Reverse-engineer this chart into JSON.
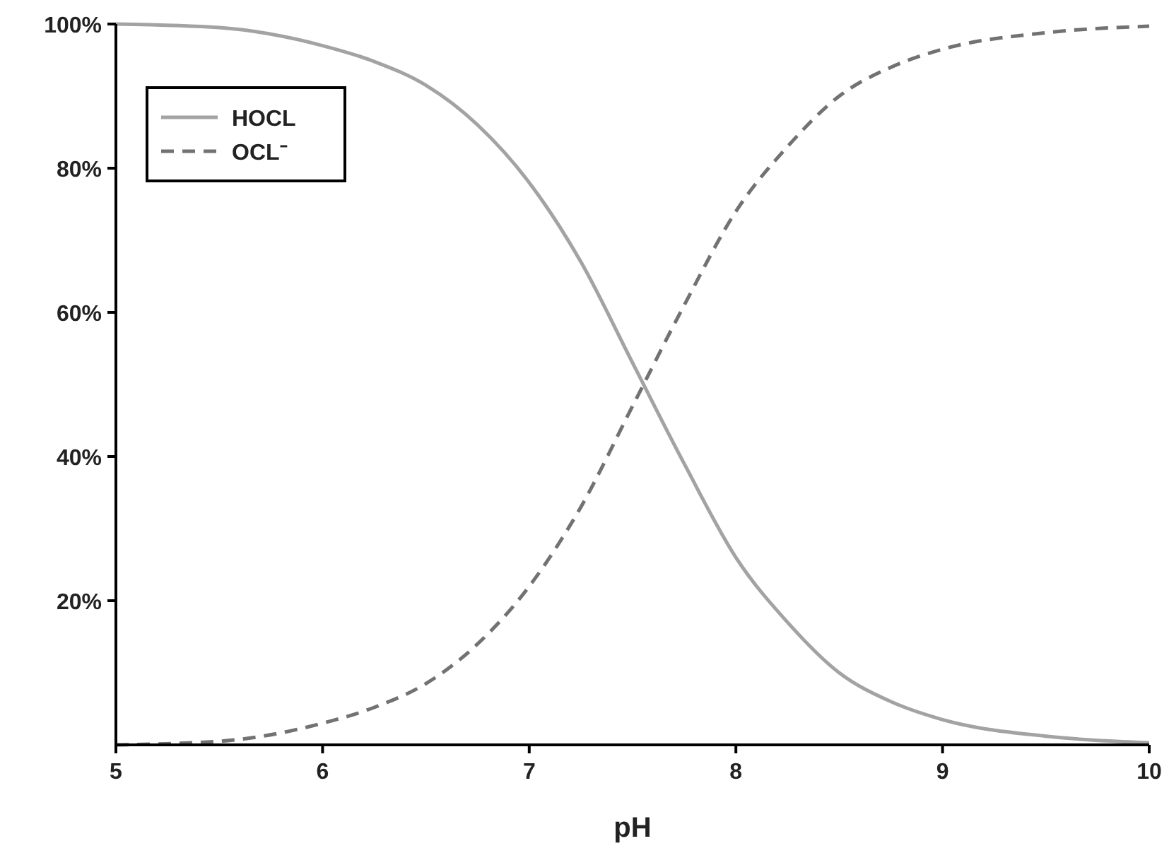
{
  "chart_data": {
    "type": "line",
    "xlabel": "pH",
    "x": [
      5,
      5.5,
      6,
      6.25,
      6.5,
      6.75,
      7,
      7.25,
      7.5,
      7.75,
      8,
      8.25,
      8.5,
      8.75,
      9,
      9.5,
      10
    ],
    "series": [
      {
        "name": "HOCL",
        "color": "#a3a3a3",
        "line_style": "solid",
        "values": [
          100,
          99.5,
          97,
          94.8,
          91.5,
          86,
          78,
          67,
          53,
          39,
          26,
          17,
          10,
          6,
          3.5,
          1.2,
          0.3
        ]
      },
      {
        "name": "OCL⁻",
        "color": "#727272",
        "line_style": "dashed",
        "values": [
          0,
          0.5,
          3,
          5.2,
          8.5,
          14,
          22,
          33,
          47,
          61,
          74,
          83,
          90,
          94,
          96.5,
          98.8,
          99.7
        ]
      }
    ],
    "xlim": [
      5,
      10
    ],
    "xticks": [
      5,
      6,
      7,
      8,
      9,
      10
    ],
    "ylim": [
      0,
      100
    ],
    "yticks": [
      {
        "value": 20,
        "label": "20%"
      },
      {
        "value": 40,
        "label": "40%"
      },
      {
        "value": 60,
        "label": "60%"
      },
      {
        "value": 80,
        "label": "80%"
      },
      {
        "value": 100,
        "label": "100%"
      }
    ],
    "grid": false,
    "legend": "top left"
  }
}
